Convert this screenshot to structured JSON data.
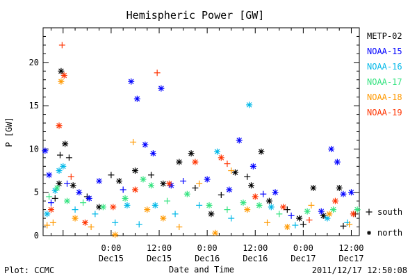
{
  "chart_data": {
    "type": "scatter",
    "title": "Hemispheric Power [GW]",
    "ylabel": "P [GW]",
    "xlabel": "Date and Time",
    "ylim": [
      0,
      24
    ],
    "xlim": [
      "2011-12-14T07:00",
      "2011-12-17T14:00"
    ],
    "y_ticks": [
      0,
      5,
      10,
      15,
      20
    ],
    "x_ticks": [
      {
        "time": "2011-12-15T00:00",
        "top": "0:00",
        "bottom": "Dec15"
      },
      {
        "time": "2011-12-15T12:00",
        "top": "12:00",
        "bottom": "Dec15"
      },
      {
        "time": "2011-12-16T00:00",
        "top": "0:00",
        "bottom": "Dec16"
      },
      {
        "time": "2011-12-16T12:00",
        "top": "12:00",
        "bottom": "Dec16"
      },
      {
        "time": "2011-12-17T00:00",
        "top": "0:00",
        "bottom": "Dec17"
      },
      {
        "time": "2011-12-17T12:00",
        "top": "12:00",
        "bottom": "Dec17"
      }
    ],
    "series": [
      {
        "name": "METP-02",
        "color": "#000000",
        "points": [
          {
            "x": "2011-12-14T10:00",
            "y": 4.3,
            "m": "south"
          },
          {
            "x": "2011-12-14T11:00",
            "y": 6.0,
            "m": "north"
          },
          {
            "x": "2011-12-14T11:30",
            "y": 19.0,
            "m": "north"
          },
          {
            "x": "2011-12-14T11:15",
            "y": 9.3,
            "m": "south"
          },
          {
            "x": "2011-12-14T12:30",
            "y": 10.6,
            "m": "north"
          },
          {
            "x": "2011-12-14T13:30",
            "y": 9.0,
            "m": "south"
          },
          {
            "x": "2011-12-14T14:30",
            "y": 5.8,
            "m": "north"
          },
          {
            "x": "2011-12-14T18:00",
            "y": 4.5,
            "m": "south"
          },
          {
            "x": "2011-12-14T21:00",
            "y": 3.3,
            "m": "north"
          },
          {
            "x": "2011-12-15T00:00",
            "y": 7.0,
            "m": "south"
          },
          {
            "x": "2011-12-15T02:00",
            "y": 6.3,
            "m": "north"
          },
          {
            "x": "2011-12-15T06:00",
            "y": 7.5,
            "m": "north"
          },
          {
            "x": "2011-12-15T10:00",
            "y": 7.0,
            "m": "south"
          },
          {
            "x": "2011-12-15T13:00",
            "y": 6.0,
            "m": "north"
          },
          {
            "x": "2011-12-15T17:00",
            "y": 8.5,
            "m": "north"
          },
          {
            "x": "2011-12-15T20:00",
            "y": 9.5,
            "m": "north"
          },
          {
            "x": "2011-12-15T21:00",
            "y": 5.5,
            "m": "south"
          },
          {
            "x": "2011-12-16T01:00",
            "y": 2.5,
            "m": "north"
          },
          {
            "x": "2011-12-16T03:30",
            "y": 4.7,
            "m": "south"
          },
          {
            "x": "2011-12-16T07:00",
            "y": 7.3,
            "m": "north"
          },
          {
            "x": "2011-12-16T10:00",
            "y": 6.8,
            "m": "south"
          },
          {
            "x": "2011-12-16T11:00",
            "y": 5.8,
            "m": "north"
          },
          {
            "x": "2011-12-16T13:30",
            "y": 9.7,
            "m": "north"
          },
          {
            "x": "2011-12-16T15:30",
            "y": 4.0,
            "m": "north"
          },
          {
            "x": "2011-12-16T20:00",
            "y": 3.0,
            "m": "south"
          },
          {
            "x": "2011-12-16T23:00",
            "y": 2.0,
            "m": "north"
          },
          {
            "x": "2011-12-17T00:00",
            "y": 1.3,
            "m": "south"
          },
          {
            "x": "2011-12-17T02:30",
            "y": 5.5,
            "m": "north"
          },
          {
            "x": "2011-12-17T05:00",
            "y": 2.3,
            "m": "north"
          },
          {
            "x": "2011-12-17T09:00",
            "y": 5.5,
            "m": "north"
          },
          {
            "x": "2011-12-17T10:00",
            "y": 1.1,
            "m": "south"
          },
          {
            "x": "2011-12-17T13:00",
            "y": 2.5,
            "m": "south"
          }
        ]
      },
      {
        "name": "NOAA-15",
        "color": "#0000ff",
        "points": [
          {
            "x": "2011-12-14T07:30",
            "y": 9.8,
            "m": "north"
          },
          {
            "x": "2011-12-14T08:30",
            "y": 7.0,
            "m": "north"
          },
          {
            "x": "2011-12-14T09:00",
            "y": 3.8,
            "m": "south"
          },
          {
            "x": "2011-12-14T13:00",
            "y": 6.0,
            "m": "south"
          },
          {
            "x": "2011-12-14T16:00",
            "y": 5.0,
            "m": "north"
          },
          {
            "x": "2011-12-14T18:30",
            "y": 4.3,
            "m": "north"
          },
          {
            "x": "2011-12-14T21:00",
            "y": 6.3,
            "m": "north"
          },
          {
            "x": "2011-12-15T03:00",
            "y": 5.3,
            "m": "south"
          },
          {
            "x": "2011-12-15T05:00",
            "y": 17.8,
            "m": "north"
          },
          {
            "x": "2011-12-15T06:30",
            "y": 15.8,
            "m": "north"
          },
          {
            "x": "2011-12-15T08:30",
            "y": 10.5,
            "m": "north"
          },
          {
            "x": "2011-12-15T10:30",
            "y": 9.5,
            "m": "north"
          },
          {
            "x": "2011-12-15T12:30",
            "y": 17.0,
            "m": "north"
          },
          {
            "x": "2011-12-15T15:00",
            "y": 5.8,
            "m": "north"
          },
          {
            "x": "2011-12-15T18:00",
            "y": 6.3,
            "m": "south"
          },
          {
            "x": "2011-12-16T00:00",
            "y": 6.5,
            "m": "north"
          },
          {
            "x": "2011-12-16T05:30",
            "y": 5.3,
            "m": "north"
          },
          {
            "x": "2011-12-16T08:00",
            "y": 11.0,
            "m": "north"
          },
          {
            "x": "2011-12-16T11:30",
            "y": 8.0,
            "m": "north"
          },
          {
            "x": "2011-12-16T14:00",
            "y": 4.8,
            "m": "south"
          },
          {
            "x": "2011-12-16T17:00",
            "y": 5.0,
            "m": "north"
          },
          {
            "x": "2011-12-16T21:00",
            "y": 2.3,
            "m": "south"
          },
          {
            "x": "2011-12-17T04:30",
            "y": 2.8,
            "m": "north"
          },
          {
            "x": "2011-12-17T07:00",
            "y": 10.0,
            "m": "north"
          },
          {
            "x": "2011-12-17T08:30",
            "y": 8.5,
            "m": "north"
          },
          {
            "x": "2011-12-17T10:00",
            "y": 4.8,
            "m": "north"
          },
          {
            "x": "2011-12-17T12:00",
            "y": 5.0,
            "m": "north"
          }
        ]
      },
      {
        "name": "NOAA-16",
        "color": "#00b8e8",
        "points": [
          {
            "x": "2011-12-14T08:00",
            "y": 2.5,
            "m": "north"
          },
          {
            "x": "2011-12-14T10:00",
            "y": 5.2,
            "m": "north"
          },
          {
            "x": "2011-12-14T11:00",
            "y": 7.5,
            "m": "north"
          },
          {
            "x": "2011-12-14T12:00",
            "y": 8.0,
            "m": "north"
          },
          {
            "x": "2011-12-14T15:00",
            "y": 3.0,
            "m": "south"
          },
          {
            "x": "2011-12-14T20:00",
            "y": 2.5,
            "m": "south"
          },
          {
            "x": "2011-12-15T01:00",
            "y": 1.5,
            "m": "south"
          },
          {
            "x": "2011-12-15T04:00",
            "y": 3.5,
            "m": "north"
          },
          {
            "x": "2011-12-15T07:00",
            "y": 1.3,
            "m": "south"
          },
          {
            "x": "2011-12-15T11:00",
            "y": 3.5,
            "m": "north"
          },
          {
            "x": "2011-12-15T16:00",
            "y": 2.5,
            "m": "south"
          },
          {
            "x": "2011-12-15T22:00",
            "y": 3.5,
            "m": "south"
          },
          {
            "x": "2011-12-16T02:30",
            "y": 9.7,
            "m": "north"
          },
          {
            "x": "2011-12-16T06:00",
            "y": 2.0,
            "m": "south"
          },
          {
            "x": "2011-12-16T10:30",
            "y": 15.1,
            "m": "north"
          },
          {
            "x": "2011-12-16T16:00",
            "y": 3.3,
            "m": "north"
          },
          {
            "x": "2011-12-16T22:00",
            "y": 1.2,
            "m": "south"
          },
          {
            "x": "2011-12-17T06:00",
            "y": 2.0,
            "m": "north"
          },
          {
            "x": "2011-12-17T11:00",
            "y": 1.5,
            "m": "south"
          }
        ]
      },
      {
        "name": "NOAA-17",
        "color": "#33e37f",
        "points": [
          {
            "x": "2011-12-14T08:30",
            "y": 4.5,
            "m": "south"
          },
          {
            "x": "2011-12-14T10:30",
            "y": 5.5,
            "m": "north"
          },
          {
            "x": "2011-12-14T13:00",
            "y": 4.0,
            "m": "north"
          },
          {
            "x": "2011-12-14T17:00",
            "y": 3.8,
            "m": "south"
          },
          {
            "x": "2011-12-14T22:00",
            "y": 3.3,
            "m": "north"
          },
          {
            "x": "2011-12-15T03:30",
            "y": 4.3,
            "m": "north"
          },
          {
            "x": "2011-12-15T08:00",
            "y": 6.5,
            "m": "north"
          },
          {
            "x": "2011-12-15T10:00",
            "y": 5.8,
            "m": "north"
          },
          {
            "x": "2011-12-15T14:00",
            "y": 4.0,
            "m": "south"
          },
          {
            "x": "2011-12-15T19:00",
            "y": 4.8,
            "m": "north"
          },
          {
            "x": "2011-12-16T00:30",
            "y": 3.5,
            "m": "north"
          },
          {
            "x": "2011-12-16T05:00",
            "y": 3.0,
            "m": "south"
          },
          {
            "x": "2011-12-16T09:00",
            "y": 3.8,
            "m": "north"
          },
          {
            "x": "2011-12-16T13:00",
            "y": 3.5,
            "m": "north"
          },
          {
            "x": "2011-12-16T18:00",
            "y": 2.5,
            "m": "south"
          },
          {
            "x": "2011-12-17T01:00",
            "y": 2.8,
            "m": "north"
          },
          {
            "x": "2011-12-17T07:30",
            "y": 3.0,
            "m": "north"
          },
          {
            "x": "2011-12-17T13:30",
            "y": 3.0,
            "m": "north"
          }
        ]
      },
      {
        "name": "NOAA-18",
        "color": "#ff9900",
        "points": [
          {
            "x": "2011-12-14T08:00",
            "y": 1.2,
            "m": "south"
          },
          {
            "x": "2011-12-14T09:30",
            "y": 1.5,
            "m": "south"
          },
          {
            "x": "2011-12-14T11:30",
            "y": 17.8,
            "m": "north"
          },
          {
            "x": "2011-12-14T15:00",
            "y": 2.0,
            "m": "north"
          },
          {
            "x": "2011-12-14T19:00",
            "y": 1.0,
            "m": "south"
          },
          {
            "x": "2011-12-15T01:00",
            "y": 0.1,
            "m": "north"
          },
          {
            "x": "2011-12-15T05:30",
            "y": 10.8,
            "m": "south"
          },
          {
            "x": "2011-12-15T09:00",
            "y": 3.0,
            "m": "north"
          },
          {
            "x": "2011-12-15T13:00",
            "y": 2.0,
            "m": "north"
          },
          {
            "x": "2011-12-15T17:00",
            "y": 1.0,
            "m": "south"
          },
          {
            "x": "2011-12-15T22:00",
            "y": 6.0,
            "m": "south"
          },
          {
            "x": "2011-12-16T02:00",
            "y": 0.3,
            "m": "north"
          },
          {
            "x": "2011-12-16T06:00",
            "y": 7.5,
            "m": "south"
          },
          {
            "x": "2011-12-16T10:00",
            "y": 3.0,
            "m": "north"
          },
          {
            "x": "2011-12-16T15:00",
            "y": 1.5,
            "m": "south"
          },
          {
            "x": "2011-12-16T20:00",
            "y": 1.0,
            "m": "north"
          },
          {
            "x": "2011-12-17T02:00",
            "y": 3.5,
            "m": "south"
          },
          {
            "x": "2011-12-17T06:30",
            "y": 2.5,
            "m": "north"
          },
          {
            "x": "2011-12-17T11:30",
            "y": 1.3,
            "m": "south"
          }
        ]
      },
      {
        "name": "NOAA-19",
        "color": "#ff3300",
        "points": [
          {
            "x": "2011-12-14T09:00",
            "y": 3.0,
            "m": "north"
          },
          {
            "x": "2011-12-14T11:00",
            "y": 12.7,
            "m": "north"
          },
          {
            "x": "2011-12-14T11:45",
            "y": 22.0,
            "m": "south"
          },
          {
            "x": "2011-12-14T12:15",
            "y": 18.5,
            "m": "north"
          },
          {
            "x": "2011-12-14T14:00",
            "y": 6.8,
            "m": "south"
          },
          {
            "x": "2011-12-14T17:30",
            "y": 1.5,
            "m": "north"
          },
          {
            "x": "2011-12-15T00:30",
            "y": 3.3,
            "m": "north"
          },
          {
            "x": "2011-12-15T06:00",
            "y": 5.3,
            "m": "north"
          },
          {
            "x": "2011-12-15T11:30",
            "y": 18.8,
            "m": "south"
          },
          {
            "x": "2011-12-15T14:30",
            "y": 6.0,
            "m": "north"
          },
          {
            "x": "2011-12-15T21:00",
            "y": 8.5,
            "m": "north"
          },
          {
            "x": "2011-12-16T03:30",
            "y": 9.0,
            "m": "north"
          },
          {
            "x": "2011-12-16T05:00",
            "y": 8.3,
            "m": "south"
          },
          {
            "x": "2011-12-16T12:00",
            "y": 4.5,
            "m": "north"
          },
          {
            "x": "2011-12-16T19:00",
            "y": 3.3,
            "m": "north"
          },
          {
            "x": "2011-12-17T01:30",
            "y": 1.8,
            "m": "south"
          },
          {
            "x": "2011-12-17T08:00",
            "y": 4.0,
            "m": "north"
          },
          {
            "x": "2011-12-17T12:30",
            "y": 2.5,
            "m": "north"
          }
        ]
      }
    ],
    "symbol_legend": [
      {
        "symbol": "+",
        "label": "south"
      },
      {
        "symbol": "*",
        "label": "north"
      }
    ]
  },
  "footer": {
    "plot_credit": "Plot: CCMC",
    "timestamp": "2011/12/17 12:50:08"
  }
}
